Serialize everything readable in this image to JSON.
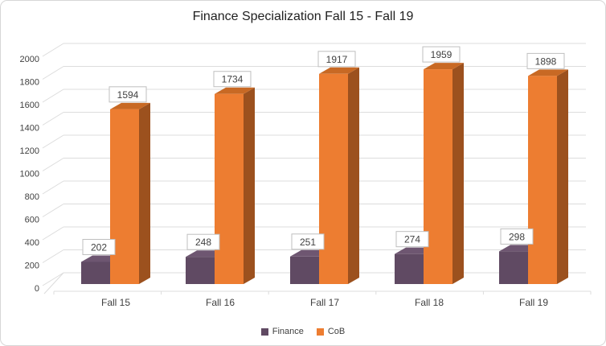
{
  "chart_data": {
    "type": "bar",
    "style": "3d-clustered-column",
    "title": "Finance Specialization Fall 15 - Fall 19",
    "categories": [
      "Fall 15",
      "Fall 16",
      "Fall 17",
      "Fall 18",
      "Fall 19"
    ],
    "series": [
      {
        "name": "Finance",
        "values": [
          202,
          248,
          251,
          274,
          298
        ],
        "color": "#604A63",
        "side_color": "#463649",
        "top_color": "#6E5671"
      },
      {
        "name": "CoB",
        "values": [
          1594,
          1734,
          1917,
          1959,
          1898
        ],
        "color": "#ED7D31",
        "side_color": "#9C511E",
        "top_color": "#C86924"
      }
    ],
    "xlabel": "",
    "ylabel": "",
    "ylim": [
      0,
      2000
    ],
    "ytick_step": 200,
    "yticks": [
      0,
      200,
      400,
      600,
      800,
      1000,
      1200,
      1400,
      1600,
      1800,
      2000
    ],
    "grid": true,
    "data_labels": true,
    "legend_position": "bottom"
  },
  "colors": {
    "gridline": "#DCDCDC",
    "axis_text": "#404040",
    "title_text": "#1F1F1F",
    "label_box_border": "#BFBFBF",
    "label_box_fill": "#FFFFFF",
    "frame_border": "#D7D7D7"
  }
}
